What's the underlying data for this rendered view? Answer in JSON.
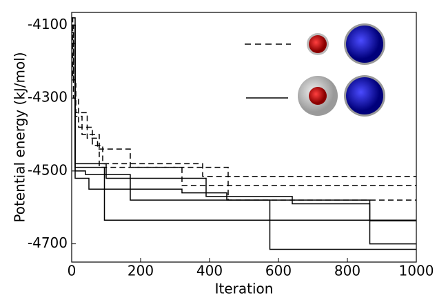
{
  "chart_data": {
    "type": "line",
    "drawstyle": "steps-post",
    "x_label": "Iteration",
    "y_label": "Potential energy (kJ/mol)",
    "xlim": [
      0,
      1000
    ],
    "xticks": [
      0,
      200,
      400,
      600,
      800,
      1000
    ],
    "ylim": [
      -4750,
      -4065
    ],
    "yticks": [
      -4100,
      -4300,
      -4500,
      -4700
    ],
    "series": [
      {
        "color": "#000000",
        "dashed": true,
        "x": [
          0,
          3,
          10,
          30,
          80,
          320,
          1000
        ],
        "values": [
          -4080,
          -4250,
          -4350,
          -4400,
          -4490,
          -4540,
          -4540
        ]
      },
      {
        "color": "#000000",
        "dashed": true,
        "x": [
          0,
          5,
          20,
          60,
          90,
          380,
          1000
        ],
        "values": [
          -4100,
          -4300,
          -4380,
          -4430,
          -4480,
          -4515,
          -4515
        ]
      },
      {
        "color": "#000000",
        "dashed": true,
        "x": [
          0,
          5,
          12,
          45,
          75,
          170,
          454,
          1000
        ],
        "values": [
          -4120,
          -4260,
          -4340,
          -4410,
          -4440,
          -4490,
          -4580,
          -4580
        ]
      },
      {
        "color": "#000000",
        "dashed": false,
        "x": [
          0,
          10,
          95,
          1000
        ],
        "values": [
          -4080,
          -4490,
          -4635,
          -4635
        ]
      },
      {
        "color": "#000000",
        "dashed": false,
        "x": [
          0,
          10,
          40,
          170,
          575,
          1000
        ],
        "values": [
          -4100,
          -4500,
          -4510,
          -4580,
          -4715,
          -4715
        ]
      },
      {
        "color": "#000000",
        "dashed": false,
        "x": [
          0,
          10,
          100,
          390,
          640,
          865,
          1000
        ],
        "values": [
          -4150,
          -4480,
          -4520,
          -4570,
          -4590,
          -4700,
          -4700
        ]
      },
      {
        "color": "#000000",
        "dashed": false,
        "x": [
          0,
          10,
          50,
          320,
          450,
          865,
          1000
        ],
        "values": [
          -4100,
          -4520,
          -4550,
          -4560,
          -4580,
          -4637,
          -4637
        ]
      }
    ]
  }
}
